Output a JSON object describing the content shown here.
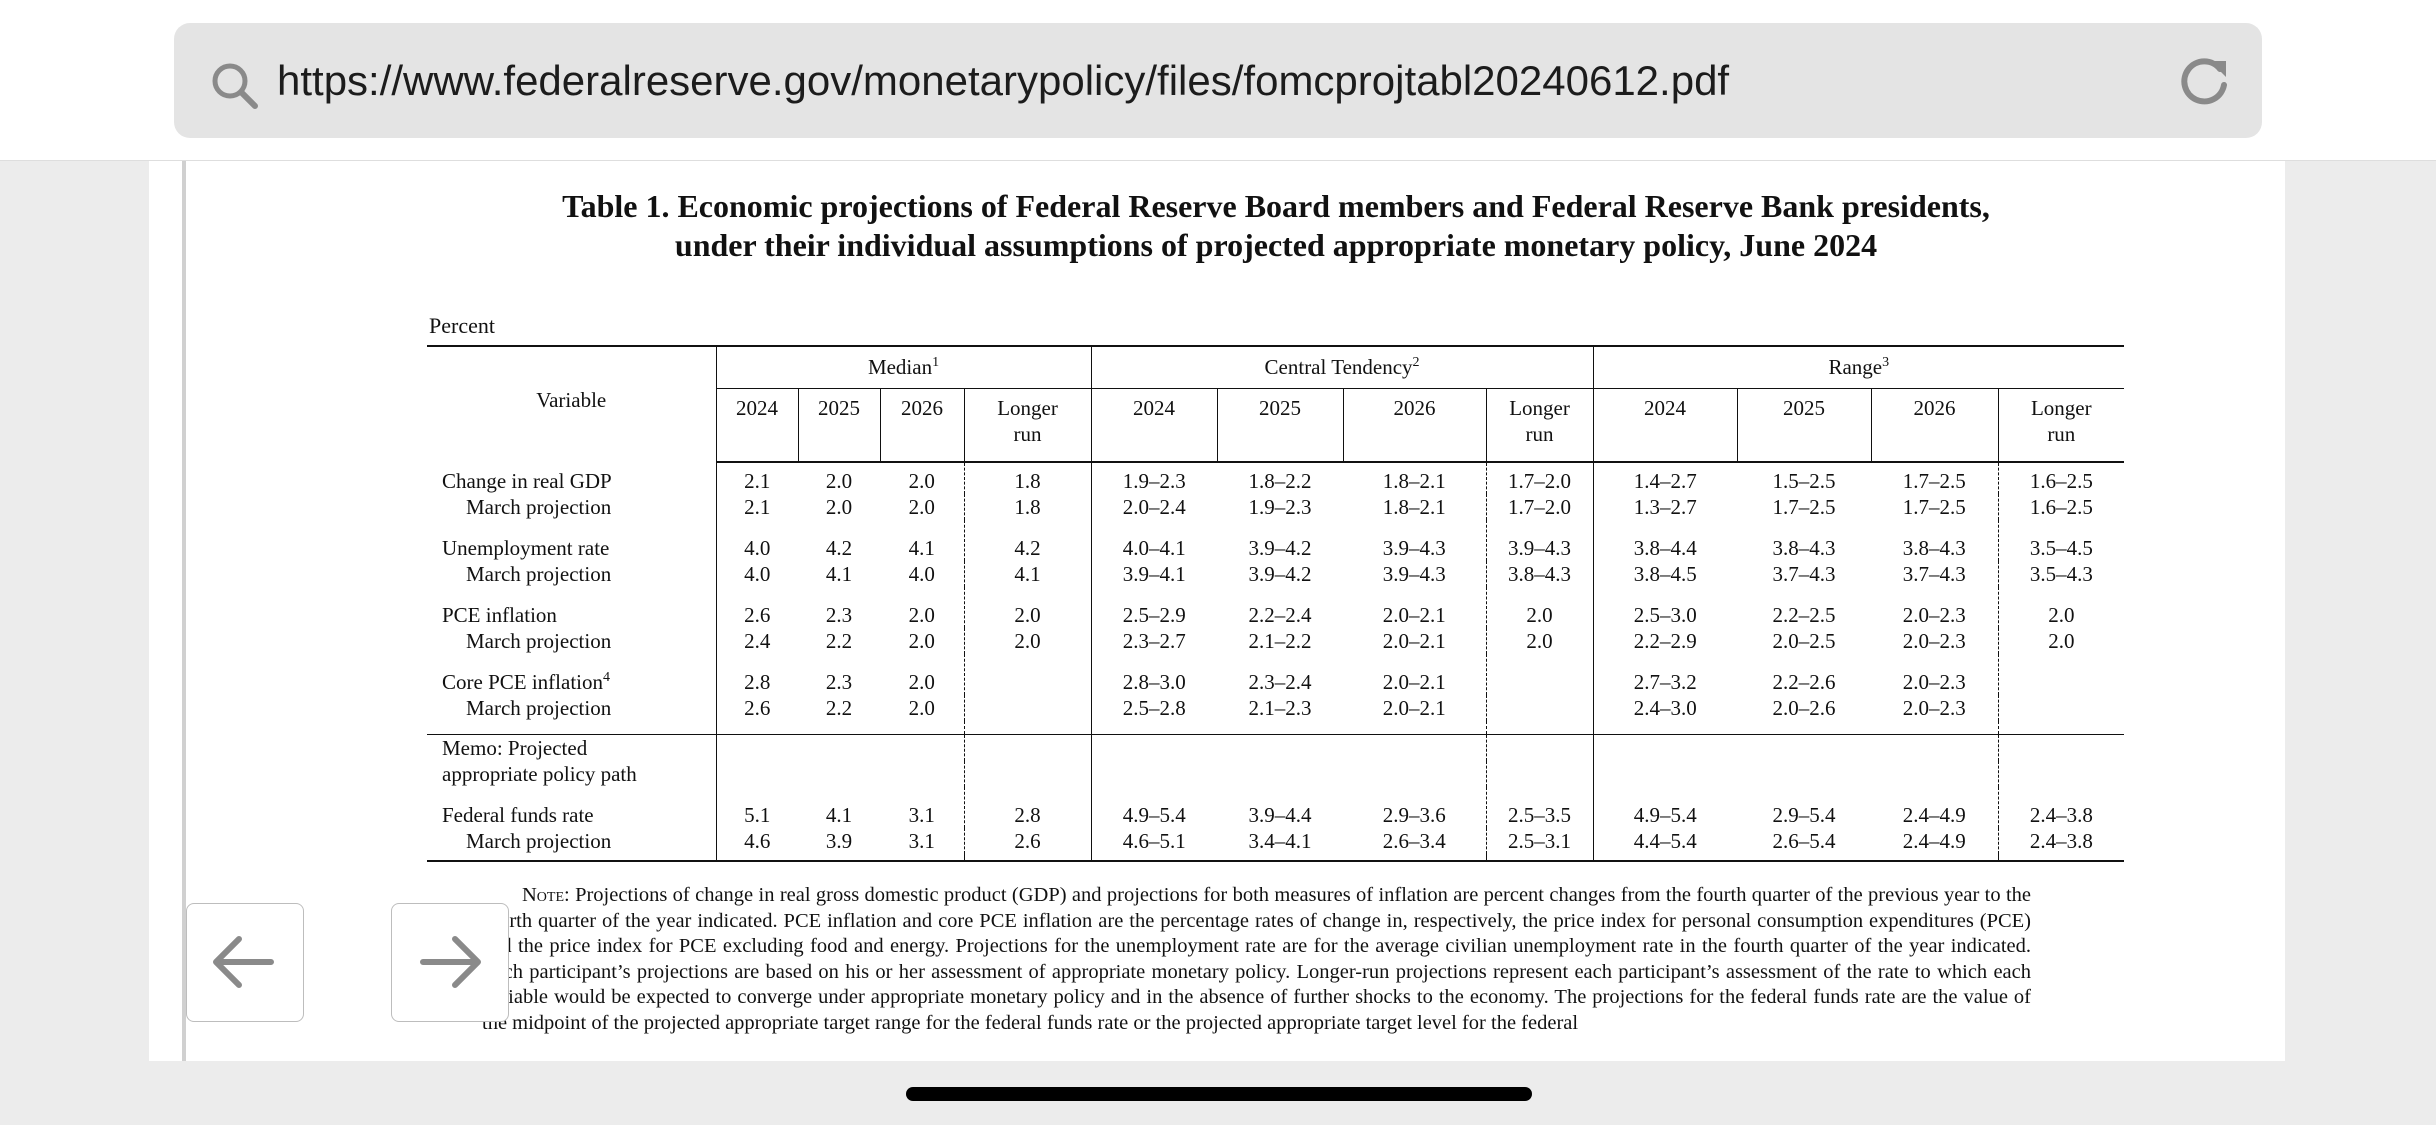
{
  "browser": {
    "url": "https://www.federalreserve.gov/monetarypolicy/files/fomcprojtabl20240612.pdf"
  },
  "document": {
    "title": [
      "Table 1. Economic projections of Federal Reserve Board members and Federal Reserve Bank presidents,",
      "under their individual assumptions of projected appropriate monetary policy, June 2024"
    ],
    "unit": "Percent",
    "table": {
      "variable_header": "Variable",
      "column_groups": [
        {
          "text": "Median",
          "note": "1"
        },
        {
          "text": "Central Tendency",
          "note": "2"
        },
        {
          "text": "Range",
          "note": "3"
        }
      ],
      "columns": [
        "2024",
        "2025",
        "2026",
        "Longer run"
      ],
      "sections": [
        {
          "groups": [
            {
              "rows": [
                {
                  "label": "Change in real GDP",
                  "cells": [
                    "2.1",
                    "2.0",
                    "2.0",
                    "1.8",
                    "1.9–2.3",
                    "1.8–2.2",
                    "1.8–2.1",
                    "1.7–2.0",
                    "1.4–2.7",
                    "1.5–2.5",
                    "1.7–2.5",
                    "1.6–2.5"
                  ]
                },
                {
                  "label": "March projection",
                  "cells": [
                    "2.1",
                    "2.0",
                    "2.0",
                    "1.8",
                    "2.0–2.4",
                    "1.9–2.3",
                    "1.8–2.1",
                    "1.7–2.0",
                    "1.3–2.7",
                    "1.7–2.5",
                    "1.7–2.5",
                    "1.6–2.5"
                  ]
                }
              ]
            },
            {
              "rows": [
                {
                  "label": "Unemployment rate",
                  "cells": [
                    "4.0",
                    "4.2",
                    "4.1",
                    "4.2",
                    "4.0–4.1",
                    "3.9–4.2",
                    "3.9–4.3",
                    "3.9–4.3",
                    "3.8–4.4",
                    "3.8–4.3",
                    "3.8–4.3",
                    "3.5–4.5"
                  ]
                },
                {
                  "label": "March projection",
                  "cells": [
                    "4.0",
                    "4.1",
                    "4.0",
                    "4.1",
                    "3.9–4.1",
                    "3.9–4.2",
                    "3.9–4.3",
                    "3.8–4.3",
                    "3.8–4.5",
                    "3.7–4.3",
                    "3.7–4.3",
                    "3.5–4.3"
                  ]
                }
              ]
            },
            {
              "rows": [
                {
                  "label": "PCE inflation",
                  "cells": [
                    "2.6",
                    "2.3",
                    "2.0",
                    "2.0",
                    "2.5–2.9",
                    "2.2–2.4",
                    "2.0–2.1",
                    "2.0",
                    "2.5–3.0",
                    "2.2–2.5",
                    "2.0–2.3",
                    "2.0"
                  ]
                },
                {
                  "label": "March projection",
                  "cells": [
                    "2.4",
                    "2.2",
                    "2.0",
                    "2.0",
                    "2.3–2.7",
                    "2.1–2.2",
                    "2.0–2.1",
                    "2.0",
                    "2.2–2.9",
                    "2.0–2.5",
                    "2.0–2.3",
                    "2.0"
                  ]
                }
              ]
            },
            {
              "rows": [
                {
                  "label": "Core PCE inflation",
                  "note": "4",
                  "cells": [
                    "2.8",
                    "2.3",
                    "2.0",
                    null,
                    "2.8–3.0",
                    "2.3–2.4",
                    "2.0–2.1",
                    null,
                    "2.7–3.2",
                    "2.2–2.6",
                    "2.0–2.3",
                    null
                  ]
                },
                {
                  "label": "March projection",
                  "cells": [
                    "2.6",
                    "2.2",
                    "2.0",
                    null,
                    "2.5–2.8",
                    "2.1–2.3",
                    "2.0–2.1",
                    null,
                    "2.4–3.0",
                    "2.0–2.6",
                    "2.0–2.3",
                    null
                  ]
                }
              ]
            }
          ]
        },
        {
          "heading": [
            "Memo: Projected",
            "appropriate policy path"
          ],
          "groups": [
            {
              "rows": [
                {
                  "label": "Federal funds rate",
                  "cells": [
                    "5.1",
                    "4.1",
                    "3.1",
                    "2.8",
                    "4.9–5.4",
                    "3.9–4.4",
                    "2.9–3.6",
                    "2.5–3.5",
                    "4.9–5.4",
                    "2.9–5.4",
                    "2.4–4.9",
                    "2.4–3.8"
                  ]
                },
                {
                  "label": "March projection",
                  "cells": [
                    "4.6",
                    "3.9",
                    "3.1",
                    "2.6",
                    "4.6–5.1",
                    "3.4–4.1",
                    "2.6–3.4",
                    "2.5–3.1",
                    "4.4–5.4",
                    "2.6–5.4",
                    "2.4–4.9",
                    "2.4–3.8"
                  ]
                }
              ]
            }
          ]
        }
      ]
    },
    "note": {
      "lead": "Note:",
      "text": "Projections of change in real gross domestic product (GDP) and projections for both measures of inflation are percent changes from the fourth quarter of the previous year to the fourth quarter of the year indicated. PCE inflation and core PCE inflation are the percentage rates of change in, respectively, the price index for personal consumption expenditures (PCE) and the price index for PCE excluding food and energy. Projections for the unemployment rate are for the average civilian unemployment rate in the fourth quarter of the year indicated. Each participant’s projections are based on his or her assessment of appropriate monetary policy. Longer-run projections represent each participant’s assessment of the rate to which each variable would be expected to converge under appropriate monetary policy and in the absence of further shocks to the economy. The projections for the federal funds rate are the value of the midpoint of the projected appropriate target range for the federal funds rate or the projected appropriate target level for the federal"
    }
  }
}
